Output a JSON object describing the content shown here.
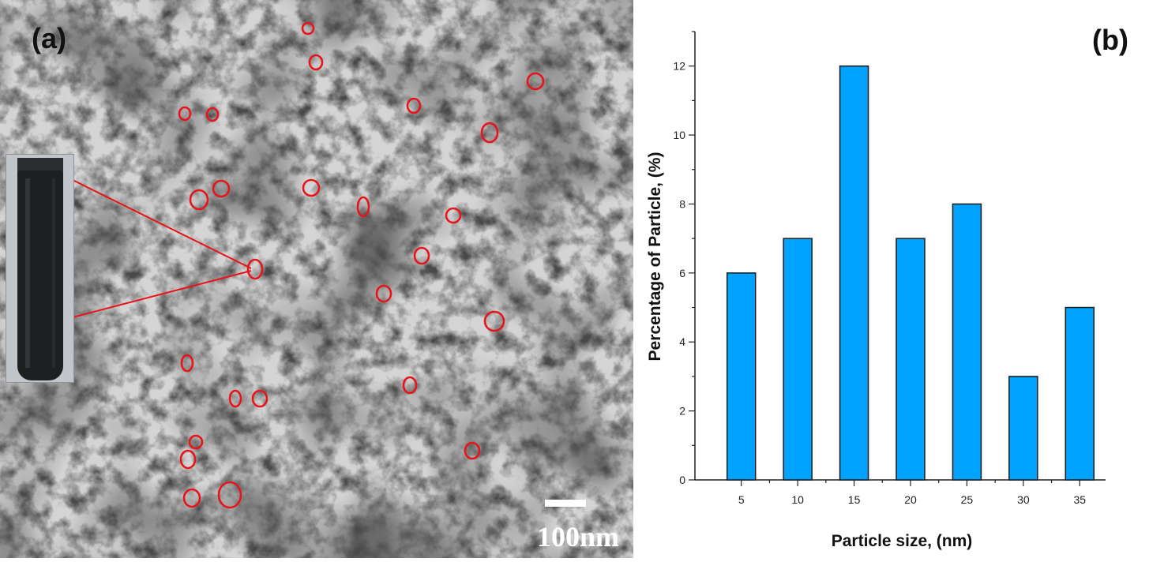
{
  "panel_a": {
    "label": "(a)",
    "scale_label": "100nm"
  },
  "panel_b": {
    "label": "(b)"
  },
  "chart_data": {
    "type": "bar",
    "categories": [
      "5",
      "10",
      "15",
      "20",
      "25",
      "30",
      "35"
    ],
    "values": [
      6,
      7,
      12,
      7,
      8,
      3,
      5
    ],
    "title": "",
    "xlabel": "Particle size, (nm)",
    "ylabel": "Percentage of Particle, (%)",
    "ylim": [
      0,
      13
    ],
    "yticks": [
      0,
      2,
      4,
      6,
      8,
      10,
      12
    ],
    "grid": false,
    "bar_color": "#00a2ff",
    "bar_edge_color": "#1a1a1a"
  },
  "colors": {
    "marker_circle": "#e8141a",
    "tem_background": "#9a9a9a"
  },
  "icons": {
    "inset_photo": "vial-photo",
    "particle_marker": "red-circle-marker"
  }
}
